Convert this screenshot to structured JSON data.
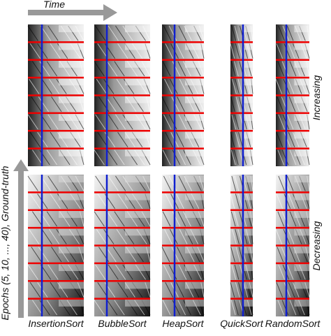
{
  "header": {
    "time_label": "Time"
  },
  "y_axis_label": "Epochs (5, 10, ..., 40), Ground-truth",
  "rows": [
    {
      "label": "Increasing"
    },
    {
      "label": "Decreasing"
    }
  ],
  "columns": [
    "InsertionSort",
    "BubbleSort",
    "HeapSort",
    "QuickSort",
    "RandomSort"
  ]
}
